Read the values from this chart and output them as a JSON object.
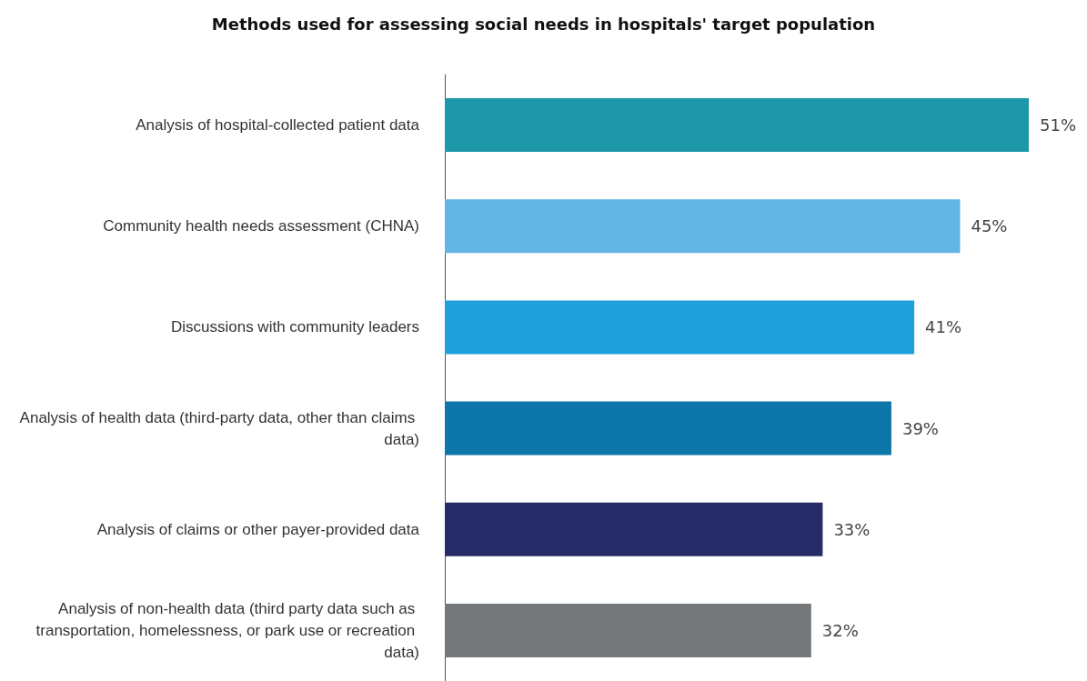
{
  "chart_data": {
    "type": "bar",
    "orientation": "horizontal",
    "title": "Methods used for assessing social needs in hospitals' target population",
    "categories": [
      "Analysis of hospital-collected patient data",
      "Community health needs assessment (CHNA)",
      "Discussions with community leaders",
      "Analysis of health data (third-party data, other than claims data)",
      "Analysis of claims or other payer-provided data",
      "Analysis of non-health data (third party data such as transportation, homelessness, or park use or recreation data)"
    ],
    "values": [
      51,
      45,
      41,
      39,
      33,
      32
    ],
    "colors": [
      "#1e98a8",
      "#62b5e5",
      "#1ea0dc",
      "#0e77aa",
      "#272c69",
      "#75787b"
    ],
    "value_labels": [
      "51%",
      "45%",
      "41%",
      "39%",
      "33%",
      "32%"
    ],
    "grid": false
  }
}
